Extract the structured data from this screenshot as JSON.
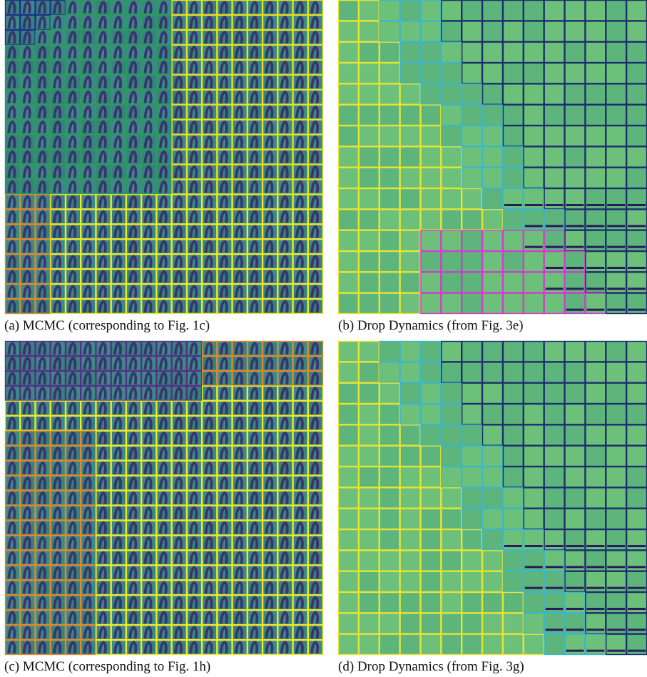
{
  "panels": [
    {
      "caption": "(a) MCMC (corresponding to Fig. 1c)"
    },
    {
      "caption": "(b) Drop Dynamics (from Fig. 3e)"
    },
    {
      "caption": "(c) MCMC (corresponding to Fig. 1h)"
    },
    {
      "caption": "(d) Drop Dynamics (from Fig. 3g)"
    }
  ]
}
